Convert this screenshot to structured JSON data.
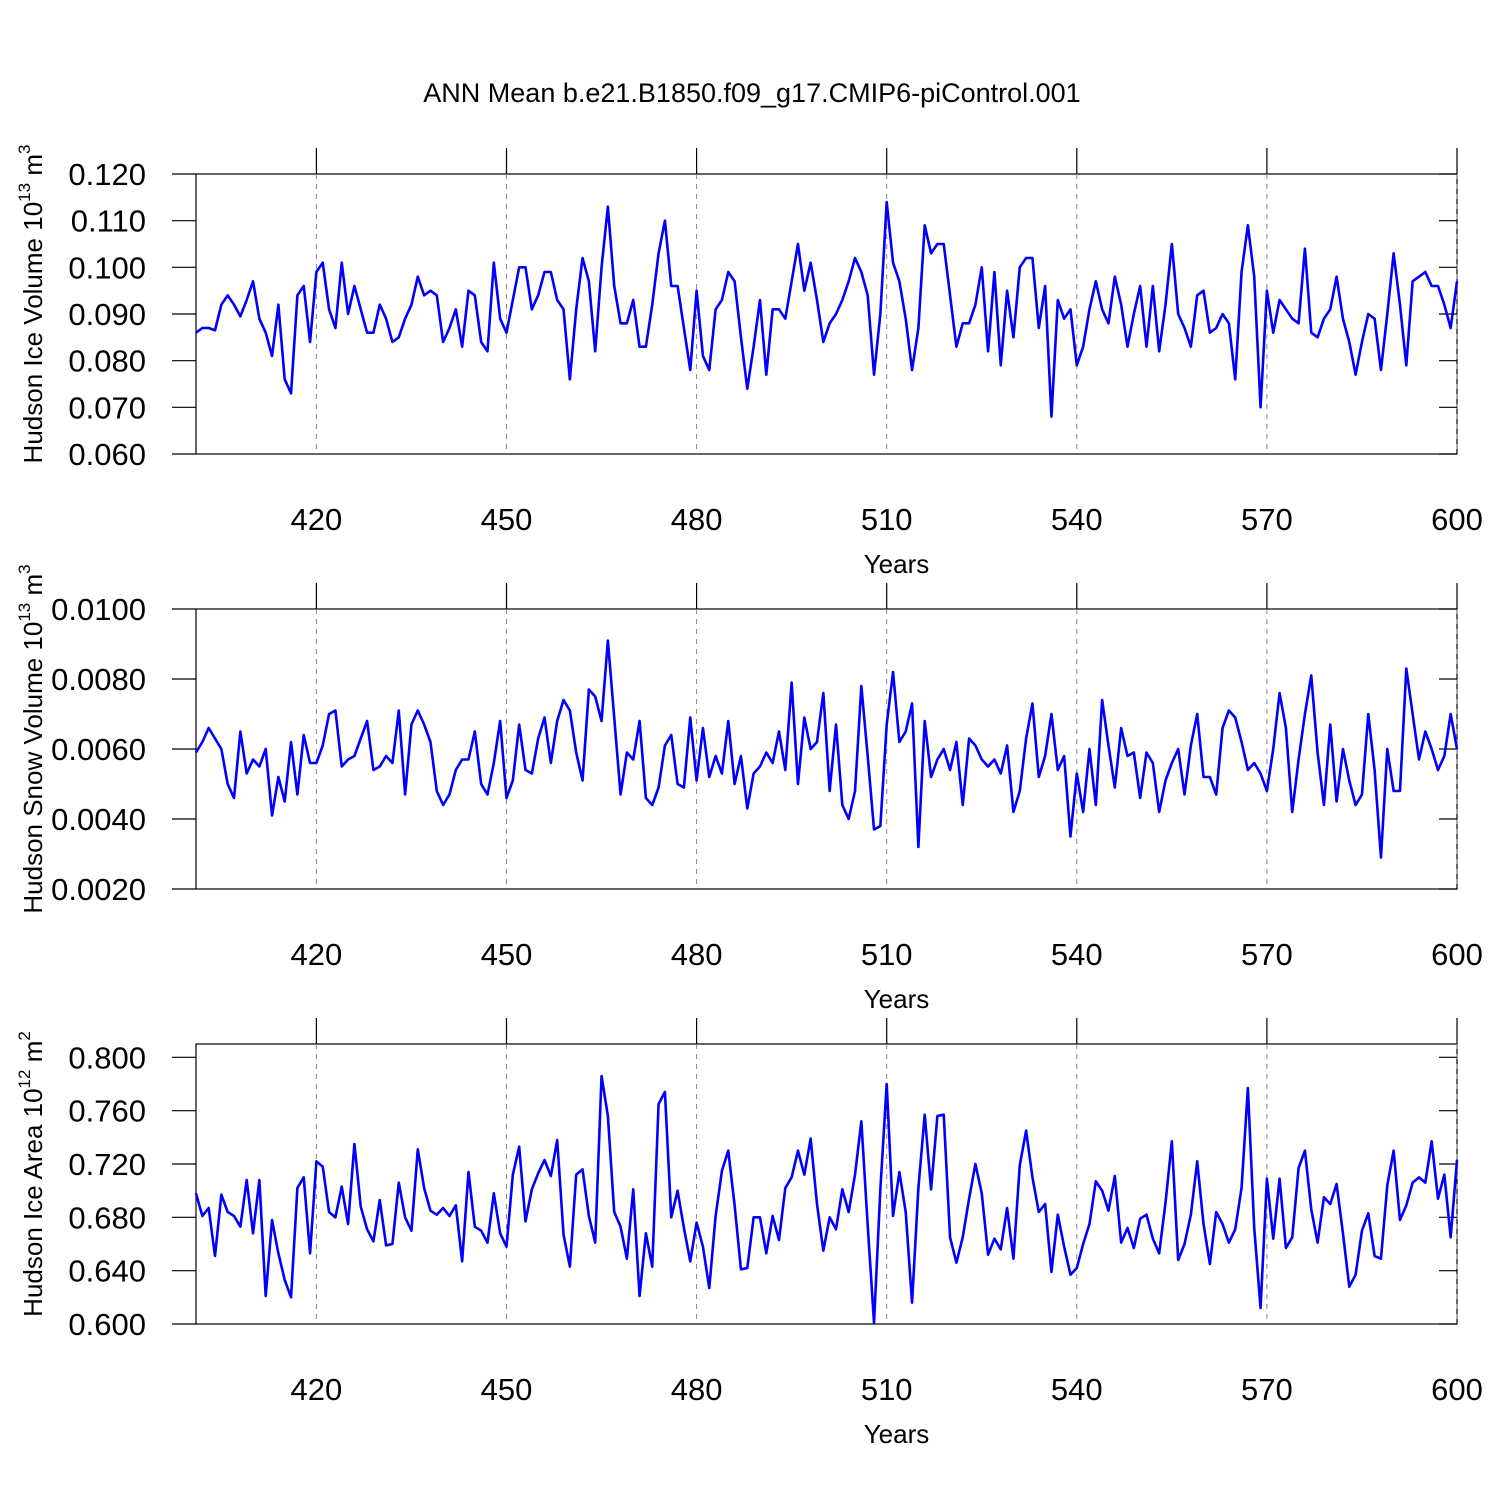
{
  "chart_data": [
    {
      "type": "line",
      "title": "ANN Mean b.e21.B1850.f09_g17.CMIP6-piControl.001",
      "ylabel": [
        "Hudson Ice Volume 10",
        "13",
        " m",
        "3"
      ],
      "xlabel": "Years",
      "color": "#0000ff",
      "grid": true,
      "xlim": [
        401,
        600
      ],
      "xticks": [
        420,
        450,
        480,
        510,
        540,
        570,
        600
      ],
      "ylim": [
        0.06,
        0.12
      ],
      "yticks": [
        {
          "value": 0.06,
          "label": "0.060"
        },
        {
          "value": 0.07,
          "label": "0.070"
        },
        {
          "value": 0.08,
          "label": "0.080"
        },
        {
          "value": 0.09,
          "label": "0.090"
        },
        {
          "value": 0.1,
          "label": "0.100"
        },
        {
          "value": 0.11,
          "label": "0.110"
        },
        {
          "value": 0.12,
          "label": "0.120"
        }
      ],
      "x": [
        401,
        402,
        403,
        404,
        405,
        406,
        407,
        408,
        409,
        410,
        411,
        412,
        413,
        414,
        415,
        416,
        417,
        418,
        419,
        420,
        421,
        422,
        423,
        424,
        425,
        426,
        427,
        428,
        429,
        430,
        431,
        432,
        433,
        434,
        435,
        436,
        437,
        438,
        439,
        440,
        441,
        442,
        443,
        444,
        445,
        446,
        447,
        448,
        449,
        450,
        451,
        452,
        453,
        454,
        455,
        456,
        457,
        458,
        459,
        460,
        461,
        462,
        463,
        464,
        465,
        466,
        467,
        468,
        469,
        470,
        471,
        472,
        473,
        474,
        475,
        476,
        477,
        478,
        479,
        480,
        481,
        482,
        483,
        484,
        485,
        486,
        487,
        488,
        489,
        490,
        491,
        492,
        493,
        494,
        495,
        496,
        497,
        498,
        499,
        500,
        501,
        502,
        503,
        504,
        505,
        506,
        507,
        508,
        509,
        510,
        511,
        512,
        513,
        514,
        515,
        516,
        517,
        518,
        519,
        520,
        521,
        522,
        523,
        524,
        525,
        526,
        527,
        528,
        529,
        530,
        531,
        532,
        533,
        534,
        535,
        536,
        537,
        538,
        539,
        540,
        541,
        542,
        543,
        544,
        545,
        546,
        547,
        548,
        549,
        550,
        551,
        552,
        553,
        554,
        555,
        556,
        557,
        558,
        559,
        560,
        561,
        562,
        563,
        564,
        565,
        566,
        567,
        568,
        569,
        570,
        571,
        572,
        573,
        574,
        575,
        576,
        577,
        578,
        579,
        580,
        581,
        582,
        583,
        584,
        585,
        586,
        587,
        588,
        589,
        590,
        591,
        592,
        593,
        594,
        595,
        596,
        597,
        598,
        599,
        600
      ],
      "values": [
        0.086,
        0.087,
        0.087,
        0.0865,
        0.092,
        0.094,
        0.092,
        0.0895,
        0.093,
        0.097,
        0.089,
        0.086,
        0.081,
        0.092,
        0.076,
        0.073,
        0.094,
        0.096,
        0.084,
        0.099,
        0.101,
        0.091,
        0.087,
        0.101,
        0.09,
        0.096,
        0.091,
        0.086,
        0.086,
        0.092,
        0.089,
        0.084,
        0.085,
        0.089,
        0.092,
        0.098,
        0.094,
        0.095,
        0.094,
        0.084,
        0.087,
        0.091,
        0.083,
        0.095,
        0.094,
        0.084,
        0.082,
        0.101,
        0.089,
        0.086,
        0.093,
        0.1,
        0.1,
        0.091,
        0.094,
        0.099,
        0.099,
        0.093,
        0.091,
        0.076,
        0.091,
        0.102,
        0.097,
        0.082,
        0.1,
        0.113,
        0.096,
        0.088,
        0.088,
        0.093,
        0.083,
        0.083,
        0.092,
        0.103,
        0.11,
        0.096,
        0.096,
        0.087,
        0.078,
        0.095,
        0.081,
        0.078,
        0.091,
        0.093,
        0.099,
        0.097,
        0.085,
        0.074,
        0.083,
        0.093,
        0.077,
        0.091,
        0.091,
        0.089,
        0.097,
        0.105,
        0.095,
        0.101,
        0.093,
        0.084,
        0.088,
        0.09,
        0.093,
        0.097,
        0.102,
        0.099,
        0.094,
        0.077,
        0.09,
        0.114,
        0.101,
        0.097,
        0.089,
        0.078,
        0.087,
        0.109,
        0.103,
        0.105,
        0.105,
        0.094,
        0.083,
        0.088,
        0.088,
        0.092,
        0.1,
        0.082,
        0.099,
        0.079,
        0.095,
        0.085,
        0.1,
        0.102,
        0.102,
        0.087,
        0.096,
        0.068,
        0.093,
        0.089,
        0.091,
        0.079,
        0.083,
        0.091,
        0.097,
        0.091,
        0.088,
        0.098,
        0.092,
        0.083,
        0.09,
        0.096,
        0.083,
        0.096,
        0.082,
        0.092,
        0.105,
        0.09,
        0.087,
        0.083,
        0.094,
        0.095,
        0.086,
        0.087,
        0.09,
        0.088,
        0.076,
        0.099,
        0.109,
        0.098,
        0.07,
        0.095,
        0.086,
        0.093,
        0.091,
        0.089,
        0.088,
        0.104,
        0.086,
        0.085,
        0.089,
        0.091,
        0.098,
        0.089,
        0.084,
        0.077,
        0.084,
        0.09,
        0.089,
        0.078,
        0.09,
        0.103,
        0.092,
        0.079,
        0.097,
        0.098,
        0.099,
        0.096,
        0.096,
        0.092,
        0.087,
        0.097
      ]
    },
    {
      "type": "line",
      "ylabel": [
        "Hudson Snow Volume 10",
        "13",
        " m",
        "3"
      ],
      "xlabel": "Years",
      "color": "#0000ff",
      "grid": true,
      "xlim": [
        401,
        600
      ],
      "xticks": [
        420,
        450,
        480,
        510,
        540,
        570,
        600
      ],
      "ylim": [
        0.002,
        0.01
      ],
      "yticks": [
        {
          "value": 0.002,
          "label": "0.0020"
        },
        {
          "value": 0.004,
          "label": "0.0040"
        },
        {
          "value": 0.006,
          "label": "0.0060"
        },
        {
          "value": 0.008,
          "label": "0.0080"
        },
        {
          "value": 0.01,
          "label": "0.0100"
        }
      ],
      "x": [
        401,
        402,
        403,
        404,
        405,
        406,
        407,
        408,
        409,
        410,
        411,
        412,
        413,
        414,
        415,
        416,
        417,
        418,
        419,
        420,
        421,
        422,
        423,
        424,
        425,
        426,
        427,
        428,
        429,
        430,
        431,
        432,
        433,
        434,
        435,
        436,
        437,
        438,
        439,
        440,
        441,
        442,
        443,
        444,
        445,
        446,
        447,
        448,
        449,
        450,
        451,
        452,
        453,
        454,
        455,
        456,
        457,
        458,
        459,
        460,
        461,
        462,
        463,
        464,
        465,
        466,
        467,
        468,
        469,
        470,
        471,
        472,
        473,
        474,
        475,
        476,
        477,
        478,
        479,
        480,
        481,
        482,
        483,
        484,
        485,
        486,
        487,
        488,
        489,
        490,
        491,
        492,
        493,
        494,
        495,
        496,
        497,
        498,
        499,
        500,
        501,
        502,
        503,
        504,
        505,
        506,
        507,
        508,
        509,
        510,
        511,
        512,
        513,
        514,
        515,
        516,
        517,
        518,
        519,
        520,
        521,
        522,
        523,
        524,
        525,
        526,
        527,
        528,
        529,
        530,
        531,
        532,
        533,
        534,
        535,
        536,
        537,
        538,
        539,
        540,
        541,
        542,
        543,
        544,
        545,
        546,
        547,
        548,
        549,
        550,
        551,
        552,
        553,
        554,
        555,
        556,
        557,
        558,
        559,
        560,
        561,
        562,
        563,
        564,
        565,
        566,
        567,
        568,
        569,
        570,
        571,
        572,
        573,
        574,
        575,
        576,
        577,
        578,
        579,
        580,
        581,
        582,
        583,
        584,
        585,
        586,
        587,
        588,
        589,
        590,
        591,
        592,
        593,
        594,
        595,
        596,
        597,
        598,
        599,
        600
      ],
      "values": [
        0.0059,
        0.0062,
        0.0066,
        0.0063,
        0.006,
        0.005,
        0.0046,
        0.0065,
        0.0053,
        0.0057,
        0.0055,
        0.006,
        0.0041,
        0.0052,
        0.0045,
        0.0062,
        0.0047,
        0.0064,
        0.0056,
        0.0056,
        0.0061,
        0.007,
        0.0071,
        0.0055,
        0.0057,
        0.0058,
        0.0063,
        0.0068,
        0.0054,
        0.0055,
        0.0058,
        0.0056,
        0.0071,
        0.0047,
        0.0067,
        0.0071,
        0.0067,
        0.0062,
        0.0048,
        0.0044,
        0.0047,
        0.0054,
        0.0057,
        0.0057,
        0.0065,
        0.005,
        0.0047,
        0.0056,
        0.0068,
        0.0046,
        0.0051,
        0.0067,
        0.0054,
        0.0053,
        0.0063,
        0.0069,
        0.0056,
        0.0068,
        0.0074,
        0.0071,
        0.0059,
        0.0051,
        0.0077,
        0.0075,
        0.0068,
        0.0091,
        0.0069,
        0.0047,
        0.0059,
        0.0057,
        0.0068,
        0.0046,
        0.0044,
        0.0049,
        0.0061,
        0.0064,
        0.005,
        0.0049,
        0.0069,
        0.0051,
        0.0066,
        0.0052,
        0.0058,
        0.0053,
        0.0068,
        0.005,
        0.0058,
        0.0043,
        0.0053,
        0.0055,
        0.0059,
        0.0056,
        0.0065,
        0.0054,
        0.0079,
        0.005,
        0.0069,
        0.006,
        0.0062,
        0.0076,
        0.0048,
        0.0067,
        0.0044,
        0.004,
        0.0048,
        0.0078,
        0.0058,
        0.0037,
        0.0038,
        0.0067,
        0.0082,
        0.0062,
        0.0065,
        0.0073,
        0.0032,
        0.0068,
        0.0052,
        0.0057,
        0.006,
        0.0054,
        0.0062,
        0.0044,
        0.0063,
        0.0061,
        0.0057,
        0.0055,
        0.0057,
        0.0053,
        0.0061,
        0.0042,
        0.0048,
        0.0063,
        0.0073,
        0.0052,
        0.0058,
        0.007,
        0.0054,
        0.0058,
        0.0035,
        0.0053,
        0.0042,
        0.006,
        0.0044,
        0.0074,
        0.0061,
        0.0049,
        0.0066,
        0.0058,
        0.0059,
        0.0046,
        0.0059,
        0.0056,
        0.0042,
        0.0051,
        0.0056,
        0.006,
        0.0047,
        0.0061,
        0.007,
        0.0052,
        0.0052,
        0.0047,
        0.0066,
        0.0071,
        0.0069,
        0.0062,
        0.0054,
        0.0056,
        0.0053,
        0.0048,
        0.006,
        0.0076,
        0.0066,
        0.0042,
        0.0057,
        0.007,
        0.0081,
        0.0059,
        0.0044,
        0.0067,
        0.0045,
        0.006,
        0.0051,
        0.0044,
        0.0047,
        0.007,
        0.0054,
        0.0029,
        0.006,
        0.0048,
        0.0048,
        0.0083,
        0.007,
        0.0057,
        0.0065,
        0.006,
        0.0054,
        0.0058,
        0.007,
        0.006
      ]
    },
    {
      "type": "line",
      "ylabel": [
        "Hudson Ice Area 10",
        "12",
        " m",
        "2"
      ],
      "xlabel": "Years",
      "color": "#0000ff",
      "grid": true,
      "xlim": [
        401,
        600
      ],
      "xticks": [
        420,
        450,
        480,
        510,
        540,
        570,
        600
      ],
      "ylim": [
        0.6,
        0.81
      ],
      "yticks": [
        {
          "value": 0.6,
          "label": "0.600"
        },
        {
          "value": 0.64,
          "label": "0.640"
        },
        {
          "value": 0.68,
          "label": "0.680"
        },
        {
          "value": 0.72,
          "label": "0.720"
        },
        {
          "value": 0.76,
          "label": "0.760"
        },
        {
          "value": 0.8,
          "label": "0.800"
        }
      ],
      "x": [
        401,
        402,
        403,
        404,
        405,
        406,
        407,
        408,
        409,
        410,
        411,
        412,
        413,
        414,
        415,
        416,
        417,
        418,
        419,
        420,
        421,
        422,
        423,
        424,
        425,
        426,
        427,
        428,
        429,
        430,
        431,
        432,
        433,
        434,
        435,
        436,
        437,
        438,
        439,
        440,
        441,
        442,
        443,
        444,
        445,
        446,
        447,
        448,
        449,
        450,
        451,
        452,
        453,
        454,
        455,
        456,
        457,
        458,
        459,
        460,
        461,
        462,
        463,
        464,
        465,
        466,
        467,
        468,
        469,
        470,
        471,
        472,
        473,
        474,
        475,
        476,
        477,
        478,
        479,
        480,
        481,
        482,
        483,
        484,
        485,
        486,
        487,
        488,
        489,
        490,
        491,
        492,
        493,
        494,
        495,
        496,
        497,
        498,
        499,
        500,
        501,
        502,
        503,
        504,
        505,
        506,
        507,
        508,
        509,
        510,
        511,
        512,
        513,
        514,
        515,
        516,
        517,
        518,
        519,
        520,
        521,
        522,
        523,
        524,
        525,
        526,
        527,
        528,
        529,
        530,
        531,
        532,
        533,
        534,
        535,
        536,
        537,
        538,
        539,
        540,
        541,
        542,
        543,
        544,
        545,
        546,
        547,
        548,
        549,
        550,
        551,
        552,
        553,
        554,
        555,
        556,
        557,
        558,
        559,
        560,
        561,
        562,
        563,
        564,
        565,
        566,
        567,
        568,
        569,
        570,
        571,
        572,
        573,
        574,
        575,
        576,
        577,
        578,
        579,
        580,
        581,
        582,
        583,
        584,
        585,
        586,
        587,
        588,
        589,
        590,
        591,
        592,
        593,
        594,
        595,
        596,
        597,
        598,
        599,
        600
      ],
      "values": [
        0.698,
        0.681,
        0.687,
        0.651,
        0.697,
        0.684,
        0.681,
        0.673,
        0.708,
        0.668,
        0.708,
        0.621,
        0.678,
        0.653,
        0.633,
        0.62,
        0.702,
        0.71,
        0.653,
        0.722,
        0.718,
        0.684,
        0.68,
        0.703,
        0.675,
        0.735,
        0.688,
        0.671,
        0.662,
        0.693,
        0.659,
        0.66,
        0.706,
        0.68,
        0.67,
        0.731,
        0.702,
        0.685,
        0.682,
        0.687,
        0.681,
        0.689,
        0.647,
        0.714,
        0.673,
        0.67,
        0.661,
        0.698,
        0.668,
        0.658,
        0.712,
        0.733,
        0.677,
        0.701,
        0.713,
        0.723,
        0.711,
        0.738,
        0.667,
        0.643,
        0.712,
        0.716,
        0.681,
        0.661,
        0.786,
        0.756,
        0.684,
        0.673,
        0.649,
        0.701,
        0.621,
        0.668,
        0.643,
        0.765,
        0.774,
        0.68,
        0.7,
        0.672,
        0.647,
        0.676,
        0.658,
        0.627,
        0.681,
        0.715,
        0.73,
        0.689,
        0.641,
        0.642,
        0.68,
        0.68,
        0.653,
        0.681,
        0.663,
        0.702,
        0.71,
        0.73,
        0.712,
        0.739,
        0.69,
        0.655,
        0.68,
        0.671,
        0.701,
        0.684,
        0.712,
        0.752,
        0.674,
        0.601,
        0.701,
        0.78,
        0.681,
        0.714,
        0.684,
        0.616,
        0.702,
        0.757,
        0.701,
        0.756,
        0.757,
        0.665,
        0.646,
        0.665,
        0.694,
        0.72,
        0.698,
        0.652,
        0.664,
        0.656,
        0.687,
        0.649,
        0.719,
        0.745,
        0.71,
        0.684,
        0.69,
        0.639,
        0.682,
        0.658,
        0.637,
        0.642,
        0.66,
        0.675,
        0.707,
        0.7,
        0.685,
        0.711,
        0.661,
        0.672,
        0.657,
        0.679,
        0.682,
        0.664,
        0.653,
        0.691,
        0.737,
        0.648,
        0.66,
        0.682,
        0.722,
        0.675,
        0.645,
        0.684,
        0.675,
        0.661,
        0.671,
        0.702,
        0.777,
        0.672,
        0.612,
        0.709,
        0.664,
        0.709,
        0.657,
        0.665,
        0.717,
        0.73,
        0.686,
        0.661,
        0.695,
        0.69,
        0.705,
        0.668,
        0.628,
        0.637,
        0.67,
        0.683,
        0.651,
        0.649,
        0.704,
        0.73,
        0.678,
        0.689,
        0.706,
        0.71,
        0.706,
        0.737,
        0.694,
        0.712,
        0.665,
        0.723
      ]
    }
  ]
}
